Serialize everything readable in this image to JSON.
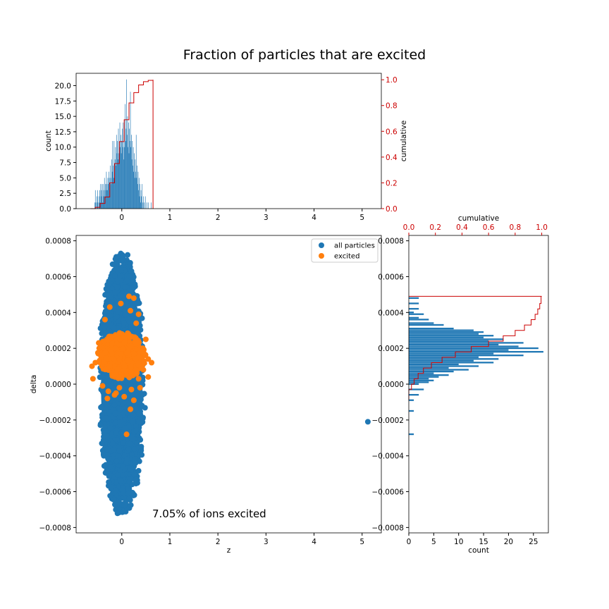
{
  "figure": {
    "title": "Fraction of particles that are excited",
    "annotation": "7.05% of ions excited"
  },
  "colors": {
    "blue": "#1f77b4",
    "orange": "#ff7f0e",
    "red": "#cc0000"
  },
  "chart_data": [
    {
      "type": "bar",
      "panel": "top histogram of z",
      "xlim": [
        -0.95,
        5.4
      ],
      "ylim": [
        0,
        22
      ],
      "ylabel": "count",
      "xticks": [
        "0",
        "1",
        "2",
        "3",
        "4",
        "5"
      ],
      "yticks": [
        "0.0",
        "2.5",
        "5.0",
        "7.5",
        "10.0",
        "12.5",
        "15.0",
        "17.5",
        "20.0"
      ],
      "bins": [
        {
          "x": -0.56,
          "count": 1
        },
        {
          "x": -0.55,
          "count": 3
        },
        {
          "x": -0.54,
          "count": 1
        },
        {
          "x": -0.52,
          "count": 2
        },
        {
          "x": -0.51,
          "count": 1
        },
        {
          "x": -0.5,
          "count": 3
        },
        {
          "x": -0.48,
          "count": 1
        },
        {
          "x": -0.47,
          "count": 2
        },
        {
          "x": -0.46,
          "count": 3
        },
        {
          "x": -0.45,
          "count": 1
        },
        {
          "x": -0.44,
          "count": 4
        },
        {
          "x": -0.43,
          "count": 2
        },
        {
          "x": -0.42,
          "count": 3
        },
        {
          "x": -0.41,
          "count": 4
        },
        {
          "x": -0.4,
          "count": 1
        },
        {
          "x": -0.39,
          "count": 4
        },
        {
          "x": -0.38,
          "count": 2
        },
        {
          "x": -0.37,
          "count": 3
        },
        {
          "x": -0.36,
          "count": 5
        },
        {
          "x": -0.35,
          "count": 2
        },
        {
          "x": -0.34,
          "count": 4
        },
        {
          "x": -0.33,
          "count": 3
        },
        {
          "x": -0.32,
          "count": 6
        },
        {
          "x": -0.31,
          "count": 4
        },
        {
          "x": -0.3,
          "count": 3
        },
        {
          "x": -0.29,
          "count": 5
        },
        {
          "x": -0.28,
          "count": 4
        },
        {
          "x": -0.27,
          "count": 6
        },
        {
          "x": -0.26,
          "count": 5
        },
        {
          "x": -0.25,
          "count": 3
        },
        {
          "x": -0.24,
          "count": 7
        },
        {
          "x": -0.23,
          "count": 5
        },
        {
          "x": -0.22,
          "count": 4
        },
        {
          "x": -0.21,
          "count": 8
        },
        {
          "x": -0.2,
          "count": 6
        },
        {
          "x": -0.19,
          "count": 11
        },
        {
          "x": -0.18,
          "count": 7
        },
        {
          "x": -0.17,
          "count": 5
        },
        {
          "x": -0.16,
          "count": 11
        },
        {
          "x": -0.15,
          "count": 6
        },
        {
          "x": -0.14,
          "count": 8
        },
        {
          "x": -0.13,
          "count": 10
        },
        {
          "x": -0.12,
          "count": 7
        },
        {
          "x": -0.11,
          "count": 12
        },
        {
          "x": -0.1,
          "count": 9
        },
        {
          "x": -0.09,
          "count": 11
        },
        {
          "x": -0.08,
          "count": 8
        },
        {
          "x": -0.07,
          "count": 13
        },
        {
          "x": -0.06,
          "count": 9
        },
        {
          "x": -0.05,
          "count": 10
        },
        {
          "x": -0.04,
          "count": 14
        },
        {
          "x": -0.03,
          "count": 10
        },
        {
          "x": -0.02,
          "count": 12
        },
        {
          "x": -0.01,
          "count": 9
        },
        {
          "x": 0.0,
          "count": 11
        },
        {
          "x": 0.01,
          "count": 13
        },
        {
          "x": 0.02,
          "count": 10
        },
        {
          "x": 0.03,
          "count": 14
        },
        {
          "x": 0.04,
          "count": 8
        },
        {
          "x": 0.05,
          "count": 12
        },
        {
          "x": 0.06,
          "count": 10
        },
        {
          "x": 0.07,
          "count": 17
        },
        {
          "x": 0.08,
          "count": 11
        },
        {
          "x": 0.09,
          "count": 13
        },
        {
          "x": 0.1,
          "count": 21
        },
        {
          "x": 0.11,
          "count": 12
        },
        {
          "x": 0.12,
          "count": 15
        },
        {
          "x": 0.13,
          "count": 10
        },
        {
          "x": 0.14,
          "count": 14
        },
        {
          "x": 0.15,
          "count": 9
        },
        {
          "x": 0.16,
          "count": 13
        },
        {
          "x": 0.17,
          "count": 11
        },
        {
          "x": 0.18,
          "count": 19
        },
        {
          "x": 0.19,
          "count": 10
        },
        {
          "x": 0.2,
          "count": 12
        },
        {
          "x": 0.21,
          "count": 8
        },
        {
          "x": 0.22,
          "count": 11
        },
        {
          "x": 0.23,
          "count": 7
        },
        {
          "x": 0.24,
          "count": 10
        },
        {
          "x": 0.25,
          "count": 6
        },
        {
          "x": 0.26,
          "count": 9
        },
        {
          "x": 0.27,
          "count": 5
        },
        {
          "x": 0.28,
          "count": 8
        },
        {
          "x": 0.29,
          "count": 6
        },
        {
          "x": 0.3,
          "count": 12
        },
        {
          "x": 0.31,
          "count": 5
        },
        {
          "x": 0.32,
          "count": 7
        },
        {
          "x": 0.33,
          "count": 4
        },
        {
          "x": 0.34,
          "count": 6
        },
        {
          "x": 0.35,
          "count": 3
        },
        {
          "x": 0.36,
          "count": 5
        },
        {
          "x": 0.37,
          "count": 2
        },
        {
          "x": 0.38,
          "count": 4
        },
        {
          "x": 0.39,
          "count": 1
        },
        {
          "x": 0.4,
          "count": 3
        },
        {
          "x": 0.41,
          "count": 2
        },
        {
          "x": 0.42,
          "count": 4
        },
        {
          "x": 0.44,
          "count": 1
        },
        {
          "x": 0.45,
          "count": 2
        },
        {
          "x": 0.47,
          "count": 1
        },
        {
          "x": 0.49,
          "count": 2
        },
        {
          "x": 0.52,
          "count": 1
        },
        {
          "x": 0.55,
          "count": 1
        },
        {
          "x": 0.61,
          "count": 1
        }
      ],
      "cumulative": {
        "name": "cumulative",
        "ylim": [
          0,
          1.05
        ],
        "yticks": [
          "0.0",
          "0.2",
          "0.4",
          "0.6",
          "0.8",
          "1.0"
        ],
        "x": [
          -0.65,
          -0.55,
          -0.45,
          -0.35,
          -0.25,
          -0.15,
          -0.05,
          0.05,
          0.15,
          0.25,
          0.35,
          0.45,
          0.55,
          0.65
        ],
        "y": [
          0.0,
          0.01,
          0.04,
          0.09,
          0.2,
          0.35,
          0.52,
          0.69,
          0.82,
          0.9,
          0.96,
          0.985,
          0.995,
          1.0
        ],
        "drop_at_x": 0.65
      }
    },
    {
      "type": "scatter",
      "panel": "main scatter",
      "xlabel": "z",
      "ylabel": "delta",
      "xlim": [
        -0.95,
        5.4
      ],
      "ylim": [
        -0.00083,
        0.00083
      ],
      "xticks": [
        "0",
        "1",
        "2",
        "3",
        "4",
        "5"
      ],
      "yticks": [
        "0.0008",
        "0.0006",
        "0.0004",
        "0.0002",
        "0.0000",
        "−0.0002",
        "−0.0004",
        "−0.0006",
        "−0.0008"
      ],
      "legend": {
        "location": "upper right",
        "entries": [
          "all particles",
          "excited"
        ]
      },
      "series": [
        {
          "name": "all particles",
          "description": "dense elliptical cloud centred at z≈0, delta≈0; z spans about −0.7 to 0.75, delta spans about −0.00075 to 0.00075",
          "center": [
            0.0,
            0.0
          ],
          "extent": [
            0.72,
            0.00075
          ],
          "outliers": [
            [
              5.12,
              -0.00021
            ]
          ]
        },
        {
          "name": "excited",
          "description": "cluster centred near z≈0, delta≈0.00015; z spans about −0.65 to 0.65, delta spans about −0.00003 to 0.00049",
          "center": [
            0.0,
            0.00016
          ],
          "extent": [
            0.55,
            0.00012
          ],
          "points": [
            [
              0.15,
              0.00049
            ],
            [
              0.25,
              0.00048
            ],
            [
              -0.25,
              0.00043
            ],
            [
              -0.02,
              0.00045
            ],
            [
              0.18,
              0.00041
            ],
            [
              0.35,
              0.00039
            ],
            [
              -0.35,
              0.00036
            ],
            [
              0.3,
              0.00034
            ],
            [
              0.1,
              -0.00028
            ],
            [
              0.18,
              -0.00014
            ],
            [
              -0.28,
              -4e-05
            ],
            [
              -0.3,
              -8e-05
            ],
            [
              -0.12,
              -5e-05
            ],
            [
              0.05,
              -7e-05
            ],
            [
              -0.05,
              -2e-05
            ],
            [
              0.2,
              -3e-05
            ],
            [
              0.35,
              3e-05
            ],
            [
              0.45,
              8e-05
            ],
            [
              0.55,
              0.00014
            ],
            [
              -0.55,
              0.00012
            ],
            [
              -0.6,
              3e-05
            ],
            [
              -0.48,
              0.00023
            ],
            [
              0.5,
              0.00025
            ],
            [
              0.55,
              4e-05
            ],
            [
              -0.4,
              -1e-05
            ],
            [
              0.38,
              -2e-05
            ],
            [
              0.25,
              -9e-05
            ],
            [
              -0.15,
              -6e-05
            ],
            [
              0.62,
              0.00012
            ],
            [
              -0.62,
              0.0001
            ]
          ]
        }
      ]
    },
    {
      "type": "bar",
      "panel": "right histogram of delta (horizontal)",
      "xlabel": "count",
      "xlim": [
        0,
        28
      ],
      "xticks": [
        "0",
        "5",
        "10",
        "15",
        "20",
        "25"
      ],
      "bins": [
        {
          "delta": -0.00028,
          "count": 1
        },
        {
          "delta": -0.00015,
          "count": 1
        },
        {
          "delta": -9e-05,
          "count": 1
        },
        {
          "delta": -6e-05,
          "count": 2
        },
        {
          "delta": -3e-05,
          "count": 3
        },
        {
          "delta": 0.0,
          "count": 2
        },
        {
          "delta": 1e-05,
          "count": 4
        },
        {
          "delta": 2e-05,
          "count": 5
        },
        {
          "delta": 3e-05,
          "count": 4
        },
        {
          "delta": 4e-05,
          "count": 6
        },
        {
          "delta": 5e-05,
          "count": 8
        },
        {
          "delta": 6e-05,
          "count": 5
        },
        {
          "delta": 7e-05,
          "count": 9
        },
        {
          "delta": 8e-05,
          "count": 12
        },
        {
          "delta": 9e-05,
          "count": 8
        },
        {
          "delta": 0.0001,
          "count": 14
        },
        {
          "delta": 0.00011,
          "count": 10
        },
        {
          "delta": 0.00012,
          "count": 17
        },
        {
          "delta": 0.00013,
          "count": 13
        },
        {
          "delta": 0.00014,
          "count": 18
        },
        {
          "delta": 0.00015,
          "count": 14
        },
        {
          "delta": 0.00016,
          "count": 23
        },
        {
          "delta": 0.00017,
          "count": 17
        },
        {
          "delta": 0.00018,
          "count": 27
        },
        {
          "delta": 0.00019,
          "count": 20
        },
        {
          "delta": 0.0002,
          "count": 26
        },
        {
          "delta": 0.00021,
          "count": 22
        },
        {
          "delta": 0.00022,
          "count": 18
        },
        {
          "delta": 0.00023,
          "count": 23
        },
        {
          "delta": 0.00024,
          "count": 16
        },
        {
          "delta": 0.00025,
          "count": 19
        },
        {
          "delta": 0.00026,
          "count": 15
        },
        {
          "delta": 0.00027,
          "count": 17
        },
        {
          "delta": 0.00028,
          "count": 14
        },
        {
          "delta": 0.00029,
          "count": 15
        },
        {
          "delta": 0.0003,
          "count": 13
        },
        {
          "delta": 0.00031,
          "count": 9
        },
        {
          "delta": 0.00033,
          "count": 7
        },
        {
          "delta": 0.00034,
          "count": 5
        },
        {
          "delta": 0.00036,
          "count": 4
        },
        {
          "delta": 0.00037,
          "count": 2
        },
        {
          "delta": 0.00039,
          "count": 3
        },
        {
          "delta": 0.0004,
          "count": 1
        },
        {
          "delta": 0.00042,
          "count": 2
        },
        {
          "delta": 0.00045,
          "count": 2
        },
        {
          "delta": 0.00048,
          "count": 2
        }
      ],
      "cumulative": {
        "name": "cumulative",
        "xlim": [
          0,
          1.05
        ],
        "xticks": [
          "0.0",
          "0.2",
          "0.4",
          "0.6",
          "0.8",
          "1.0"
        ],
        "delta": [
          -9e-05,
          -3e-05,
          0.0,
          3e-05,
          6e-05,
          9e-05,
          0.00012,
          0.00015,
          0.00018,
          0.00021,
          0.00024,
          0.00027,
          0.0003,
          0.00033,
          0.00036,
          0.00039,
          0.00042,
          0.00045,
          0.00049
        ],
        "value": [
          0.0,
          0.02,
          0.04,
          0.07,
          0.11,
          0.17,
          0.25,
          0.35,
          0.47,
          0.6,
          0.71,
          0.8,
          0.87,
          0.92,
          0.95,
          0.97,
          0.985,
          0.995,
          1.0
        ],
        "drop_at_delta": 0.00049
      }
    }
  ]
}
